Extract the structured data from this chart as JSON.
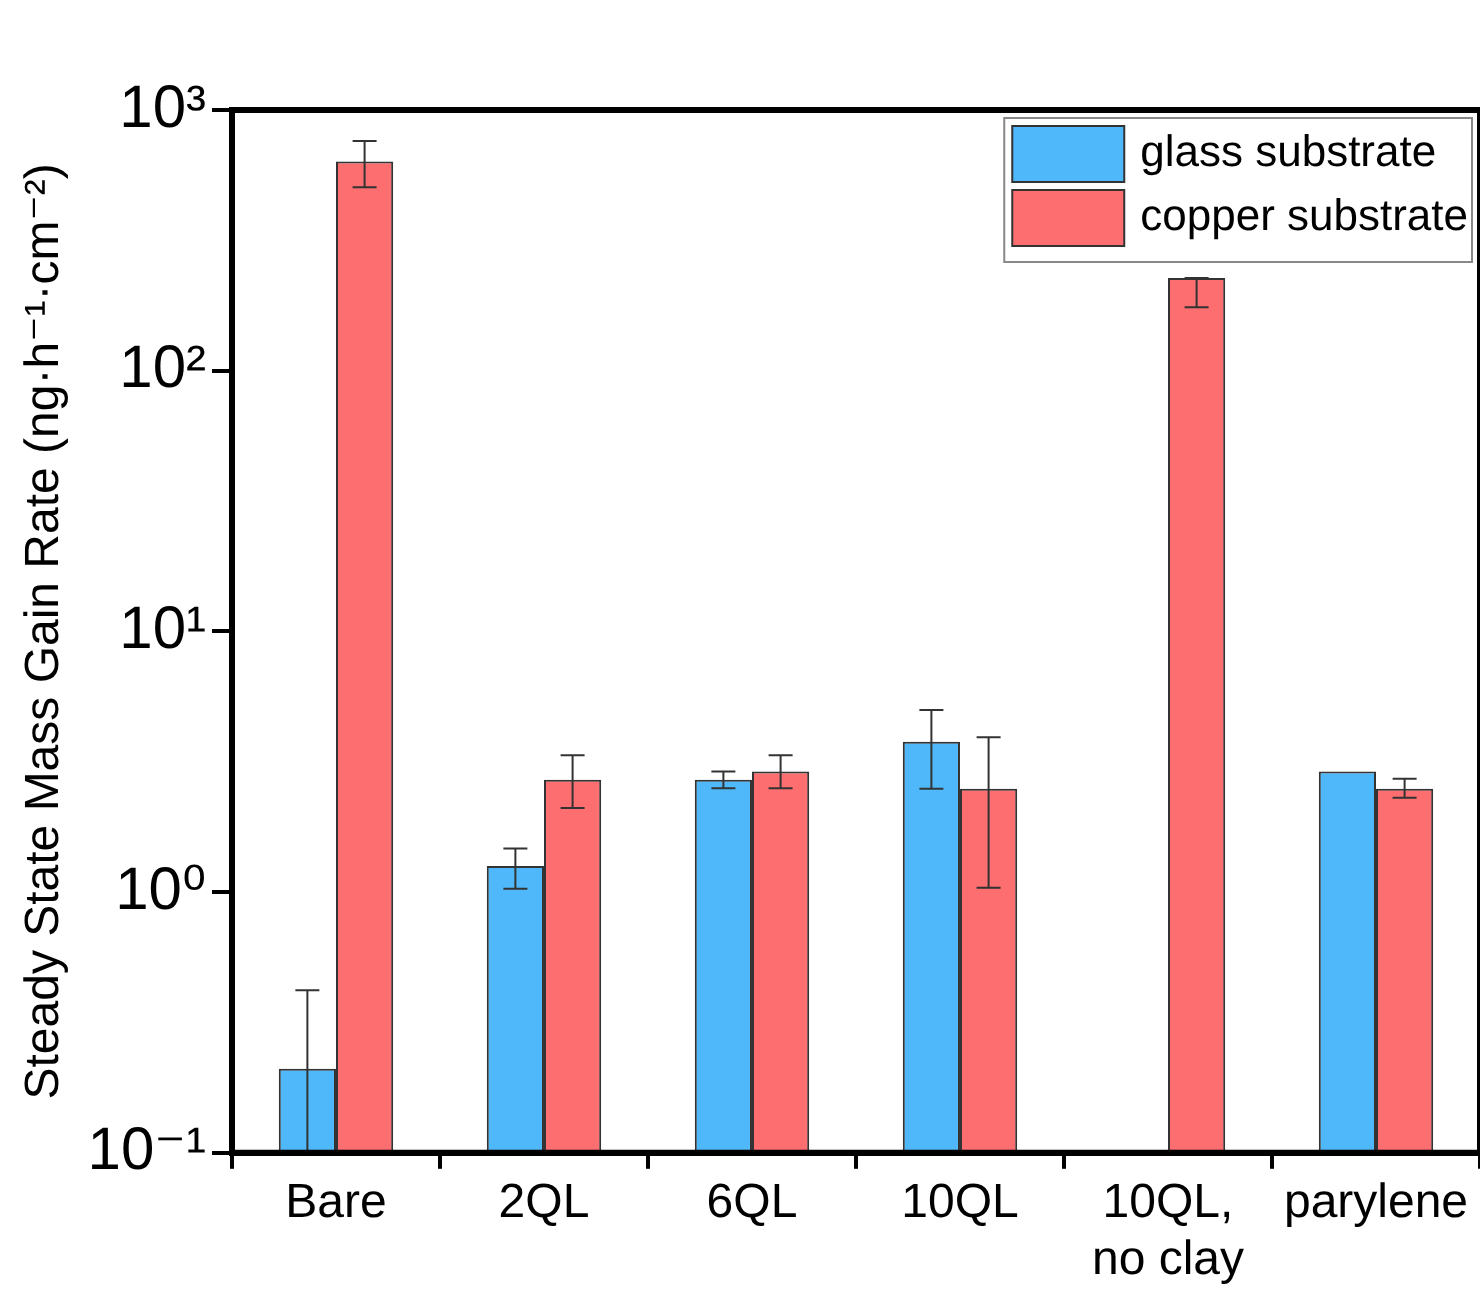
{
  "chart_data": {
    "type": "bar",
    "ylabel": "Steady State Mass Gain Rate (ng·h⁻¹·cm⁻²)",
    "categories": [
      "Bare",
      "2QL",
      "6QL",
      "10QL",
      "10QL,\nno clay",
      "parylene"
    ],
    "series": [
      {
        "name": "glass substrate",
        "color": "#4fb8fb",
        "values": [
          0.21,
          1.26,
          2.7,
          3.77,
          null,
          2.9
        ],
        "errors": [
          [
            0.1,
            0.42
          ],
          [
            1.03,
            1.47
          ],
          [
            2.5,
            2.9
          ],
          [
            2.49,
            5.0
          ],
          null,
          null
        ]
      },
      {
        "name": "copper substrate",
        "color": "#fd6e70",
        "values": [
          635,
          2.7,
          2.9,
          2.49,
          227,
          2.49
        ],
        "errors": [
          [
            505,
            760
          ],
          [
            2.1,
            3.35
          ],
          [
            2.5,
            3.35
          ],
          [
            1.04,
            3.93
          ],
          [
            175,
            227
          ],
          [
            2.3,
            2.72
          ]
        ]
      }
    ],
    "log": true,
    "ylim": [
      0.1,
      1000
    ],
    "yticks": [
      {
        "value": 0.1,
        "label": "10⁻¹"
      },
      {
        "value": 1,
        "label": "10⁰"
      },
      {
        "value": 10,
        "label": "10¹"
      },
      {
        "value": 100,
        "label": "10²"
      },
      {
        "value": 1000,
        "label": "10³"
      }
    ],
    "legend": "top right",
    "grid": false
  }
}
